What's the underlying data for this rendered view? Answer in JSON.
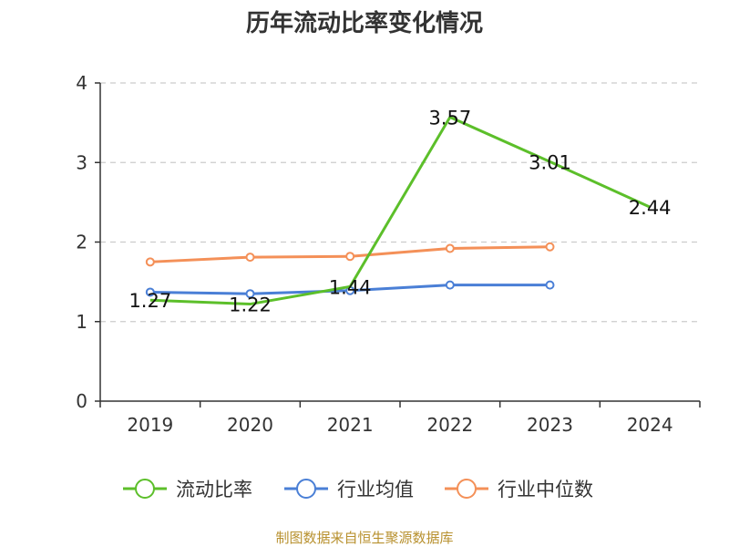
{
  "chart_data": {
    "type": "line",
    "title": "历年流动比率变化情况",
    "categories": [
      "2019",
      "2020",
      "2021",
      "2022",
      "2023",
      "2024"
    ],
    "ylim": [
      0,
      4
    ],
    "yticks": [
      "0",
      "1",
      "2",
      "3",
      "4"
    ],
    "grid": true,
    "legend_position": "bottom",
    "series": [
      {
        "name": "流动比率",
        "color": "#5cbf2a",
        "values": [
          1.27,
          1.22,
          1.44,
          3.57,
          3.01,
          2.44
        ],
        "labels": [
          "1.27",
          "1.22",
          "1.44",
          "3.57",
          "3.01",
          "2.44"
        ],
        "markers": false
      },
      {
        "name": "行业均值",
        "color": "#4a7fd6",
        "values": [
          1.37,
          1.35,
          1.39,
          1.46,
          1.46,
          null
        ],
        "markers": true
      },
      {
        "name": "行业中位数",
        "color": "#f49058",
        "values": [
          1.75,
          1.81,
          1.82,
          1.92,
          1.94,
          null
        ],
        "markers": true
      }
    ],
    "source": "制图数据来自恒生聚源数据库"
  }
}
